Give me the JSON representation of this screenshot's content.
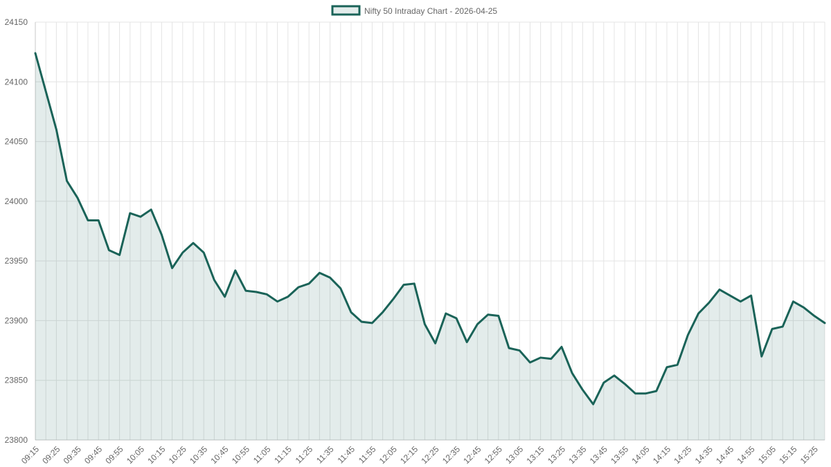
{
  "chart_data": {
    "type": "area",
    "title": "",
    "legend": {
      "label": "Nifty 50 Intraday Chart - 2026-04-25",
      "position": "top"
    },
    "series": [
      {
        "name": "Nifty 50 Intraday Chart - 2026-04-25",
        "values": [
          24124,
          24092,
          24060,
          24017,
          24003,
          23984,
          23984,
          23959,
          23955,
          23990,
          23987,
          23993,
          23972,
          23944,
          23957,
          23965,
          23957,
          23934,
          23920,
          23942,
          23925,
          23924,
          23922,
          23916,
          23920,
          23928,
          23931,
          23940,
          23936,
          23927,
          23907,
          23899,
          23898,
          23907,
          23918,
          23930,
          23931,
          23897,
          23881,
          23906,
          23902,
          23882,
          23897,
          23905,
          23904,
          23877,
          23875,
          23865,
          23869,
          23868,
          23878,
          23856,
          23842,
          23830,
          23848,
          23854,
          23847,
          23839,
          23839,
          23841,
          23861,
          23863,
          23888,
          23906,
          23915,
          23926,
          23921,
          23916,
          23921,
          23870,
          23893,
          23895,
          23916,
          23911,
          23904,
          23898
        ]
      }
    ],
    "x_labels": [
      "09:15",
      "09:25",
      "09:35",
      "09:45",
      "09:55",
      "10:05",
      "10:15",
      "10:25",
      "10:35",
      "10:45",
      "10:55",
      "11:05",
      "11:15",
      "11:25",
      "11:35",
      "11:45",
      "11:55",
      "12:05",
      "12:15",
      "12:25",
      "12:35",
      "12:45",
      "12:55",
      "13:05",
      "13:15",
      "13:25",
      "13:35",
      "13:45",
      "13:55",
      "14:05",
      "14:15",
      "14:25",
      "14:35",
      "14:45",
      "14:55",
      "15:05",
      "15:15",
      "15:25"
    ],
    "y_ticks": [
      23800,
      23850,
      23900,
      23950,
      24000,
      24050,
      24100,
      24150
    ],
    "ylim": [
      23800,
      24150
    ],
    "grid": true,
    "colors": {
      "line": "#1a6358",
      "fill": "rgba(26,99,88,0.12)",
      "grid": "#e4e4e4",
      "text": "#666666"
    }
  }
}
